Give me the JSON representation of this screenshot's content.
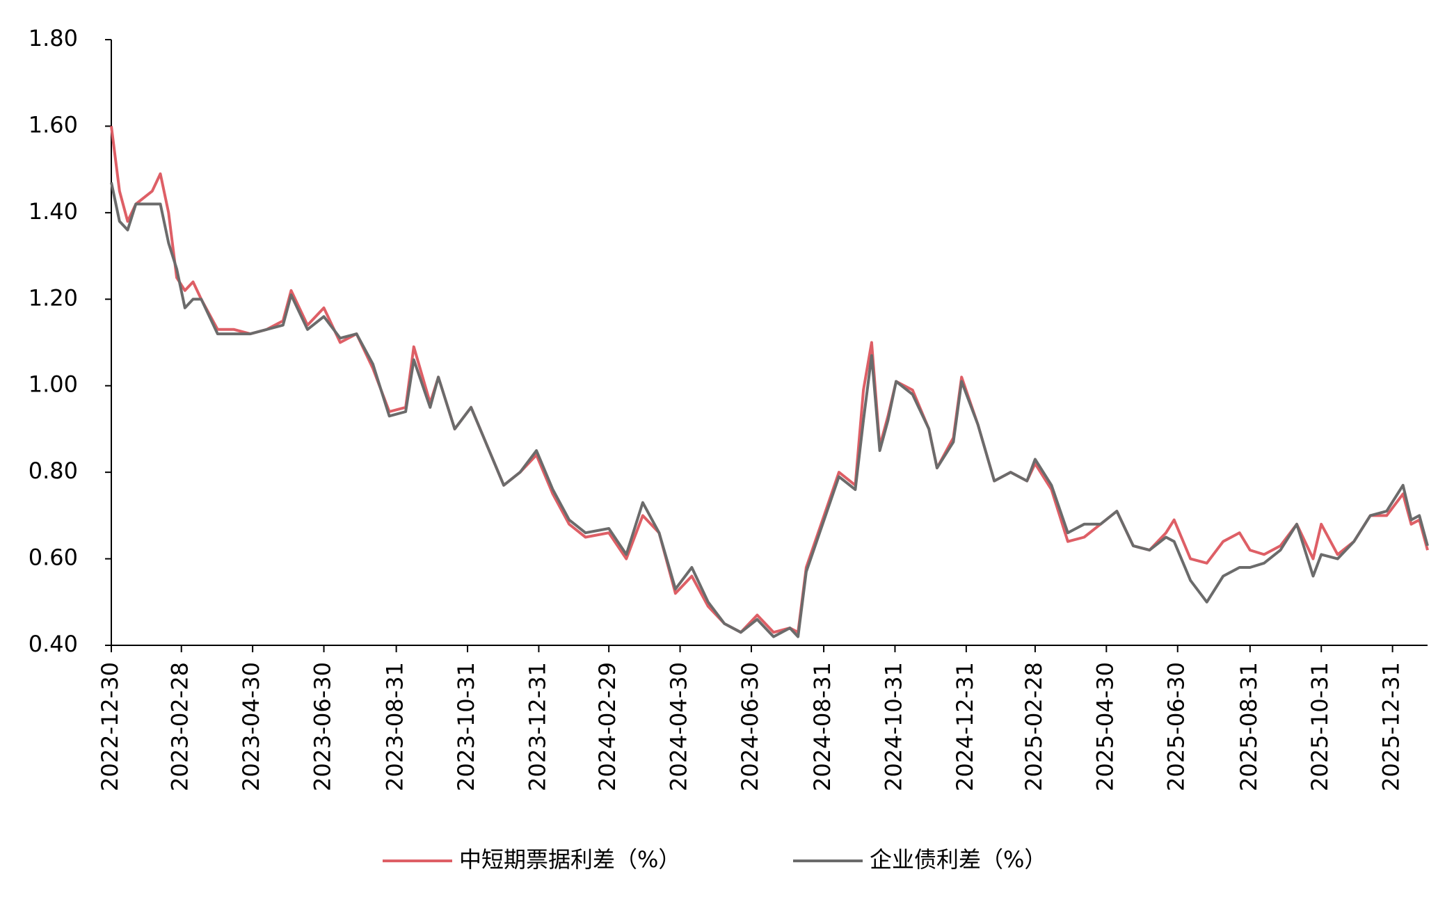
{
  "chart_data": {
    "type": "line",
    "x": [
      "2022-12-30",
      "2023-01-06",
      "2023-01-13",
      "2023-01-20",
      "2023-02-03",
      "2023-02-10",
      "2023-02-17",
      "2023-02-24",
      "2023-03-03",
      "2023-03-10",
      "2023-03-17",
      "2023-03-31",
      "2023-04-14",
      "2023-04-28",
      "2023-05-12",
      "2023-05-26",
      "2023-06-02",
      "2023-06-16",
      "2023-06-30",
      "2023-07-14",
      "2023-07-28",
      "2023-08-11",
      "2023-08-25",
      "2023-09-08",
      "2023-09-15",
      "2023-09-29",
      "2023-10-06",
      "2023-10-20",
      "2023-11-03",
      "2023-11-17",
      "2023-12-01",
      "2023-12-15",
      "2023-12-29",
      "2024-01-12",
      "2024-01-26",
      "2024-02-09",
      "2024-02-29",
      "2024-03-15",
      "2024-03-29",
      "2024-04-12",
      "2024-04-26",
      "2024-05-10",
      "2024-05-24",
      "2024-06-07",
      "2024-06-21",
      "2024-07-05",
      "2024-07-19",
      "2024-08-02",
      "2024-08-09",
      "2024-08-16",
      "2024-08-30",
      "2024-09-13",
      "2024-09-27",
      "2024-10-04",
      "2024-10-11",
      "2024-10-18",
      "2024-10-25",
      "2024-11-01",
      "2024-11-15",
      "2024-11-29",
      "2024-12-06",
      "2024-12-20",
      "2024-12-27",
      "2025-01-10",
      "2025-01-24",
      "2025-02-07",
      "2025-02-21",
      "2025-02-28",
      "2025-03-14",
      "2025-03-28",
      "2025-04-11",
      "2025-04-25",
      "2025-05-09",
      "2025-05-23",
      "2025-06-06",
      "2025-06-20",
      "2025-06-27",
      "2025-07-11",
      "2025-07-25",
      "2025-08-08",
      "2025-08-22",
      "2025-08-31",
      "2025-09-12",
      "2025-09-26",
      "2025-10-10",
      "2025-10-24",
      "2025-10-31",
      "2025-11-14",
      "2025-11-28",
      "2025-12-12",
      "2025-12-26",
      "2026-01-09",
      "2026-01-16",
      "2026-01-23",
      "2026-01-30"
    ],
    "series": [
      {
        "name": "中短期票据利差（%）",
        "color": "#de5f66",
        "values": [
          1.6,
          1.45,
          1.38,
          1.42,
          1.45,
          1.49,
          1.4,
          1.25,
          1.22,
          1.24,
          1.2,
          1.13,
          1.13,
          1.12,
          1.13,
          1.15,
          1.22,
          1.14,
          1.18,
          1.1,
          1.12,
          1.04,
          0.94,
          0.95,
          1.09,
          0.96,
          1.02,
          0.9,
          0.95,
          0.86,
          0.77,
          0.8,
          0.84,
          0.75,
          0.68,
          0.65,
          0.66,
          0.6,
          0.7,
          0.66,
          0.52,
          0.56,
          0.49,
          0.45,
          0.43,
          0.47,
          0.43,
          0.44,
          0.43,
          0.58,
          0.69,
          0.8,
          0.77,
          0.99,
          1.1,
          0.86,
          0.93,
          1.01,
          0.99,
          0.9,
          0.81,
          0.88,
          1.02,
          0.91,
          0.78,
          0.8,
          0.78,
          0.82,
          0.76,
          0.64,
          0.65,
          0.68,
          0.71,
          0.63,
          0.62,
          0.66,
          0.69,
          0.6,
          0.59,
          0.64,
          0.66,
          0.62,
          0.61,
          0.63,
          0.68,
          0.6,
          0.68,
          0.61,
          0.64,
          0.7,
          0.7,
          0.75,
          0.68,
          0.69,
          0.62
        ]
      },
      {
        "name": "企业债利差（%）",
        "color": "#6b6b6b",
        "values": [
          1.47,
          1.38,
          1.36,
          1.42,
          1.42,
          1.42,
          1.33,
          1.27,
          1.18,
          1.2,
          1.2,
          1.12,
          1.12,
          1.12,
          1.13,
          1.14,
          1.21,
          1.13,
          1.16,
          1.11,
          1.12,
          1.05,
          0.93,
          0.94,
          1.06,
          0.95,
          1.02,
          0.9,
          0.95,
          0.86,
          0.77,
          0.8,
          0.85,
          0.76,
          0.69,
          0.66,
          0.67,
          0.61,
          0.73,
          0.66,
          0.53,
          0.58,
          0.5,
          0.45,
          0.43,
          0.46,
          0.42,
          0.44,
          0.42,
          0.57,
          0.68,
          0.79,
          0.76,
          0.92,
          1.07,
          0.85,
          0.92,
          1.01,
          0.98,
          0.9,
          0.81,
          0.87,
          1.01,
          0.91,
          0.78,
          0.8,
          0.78,
          0.83,
          0.77,
          0.66,
          0.68,
          0.68,
          0.71,
          0.63,
          0.62,
          0.65,
          0.64,
          0.55,
          0.5,
          0.56,
          0.58,
          0.58,
          0.59,
          0.62,
          0.68,
          0.56,
          0.61,
          0.6,
          0.64,
          0.7,
          0.71,
          0.77,
          0.69,
          0.7,
          0.63
        ]
      }
    ],
    "xlim": [
      "2022-12-30",
      "2026-01-30"
    ],
    "xticks": [
      "2022-12-30",
      "2023-02-28",
      "2023-04-30",
      "2023-06-30",
      "2023-08-31",
      "2023-10-31",
      "2023-12-31",
      "2024-02-29",
      "2024-04-30",
      "2024-06-30",
      "2024-08-31",
      "2024-10-31",
      "2024-12-31",
      "2025-02-28",
      "2025-04-30",
      "2025-06-30",
      "2025-08-31",
      "2025-10-31",
      "2025-12-31"
    ],
    "ylim": [
      0.4,
      1.8
    ],
    "yticks": [
      {
        "value": 0.4,
        "label": "0.40"
      },
      {
        "value": 0.6,
        "label": "0.60"
      },
      {
        "value": 0.8,
        "label": "0.80"
      },
      {
        "value": 1.0,
        "label": "1.00"
      },
      {
        "value": 1.2,
        "label": "1.20"
      },
      {
        "value": 1.4,
        "label": "1.40"
      },
      {
        "value": 1.6,
        "label": "1.60"
      },
      {
        "value": 1.8,
        "label": "1.80"
      }
    ],
    "legend": "bottom"
  }
}
